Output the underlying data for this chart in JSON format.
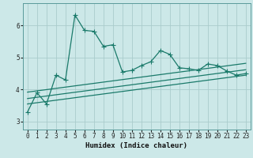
{
  "title": "",
  "xlabel": "Humidex (Indice chaleur)",
  "ylabel": "",
  "bg_color": "#cce8e8",
  "grid_color": "#aacccc",
  "line_color": "#1a7a6a",
  "spine_color": "#5a9a9a",
  "xlim": [
    -0.5,
    23.5
  ],
  "ylim": [
    2.75,
    6.7
  ],
  "xticks": [
    0,
    1,
    2,
    3,
    4,
    5,
    6,
    7,
    8,
    9,
    10,
    11,
    12,
    13,
    14,
    15,
    16,
    17,
    18,
    19,
    20,
    21,
    22,
    23
  ],
  "yticks": [
    3,
    4,
    5,
    6
  ],
  "main_series_x": [
    0,
    1,
    2,
    3,
    4,
    5,
    6,
    7,
    8,
    9,
    10,
    11,
    12,
    13,
    14,
    15,
    16,
    17,
    18,
    19,
    20,
    21,
    22,
    23
  ],
  "main_series_y": [
    3.3,
    3.9,
    3.55,
    4.45,
    4.3,
    6.33,
    5.85,
    5.82,
    5.35,
    5.4,
    4.55,
    4.6,
    4.75,
    4.87,
    5.22,
    5.1,
    4.68,
    4.65,
    4.6,
    4.8,
    4.75,
    4.58,
    4.45,
    4.5
  ],
  "line1_x": [
    0,
    23
  ],
  "line1_y": [
    3.92,
    4.82
  ],
  "line2_x": [
    0,
    23
  ],
  "line2_y": [
    3.72,
    4.62
  ],
  "line3_x": [
    0,
    23
  ],
  "line3_y": [
    3.55,
    4.45
  ],
  "marker": "+",
  "marker_size": 4,
  "line_width": 0.9,
  "tick_label_size": 5.5,
  "xlabel_size": 6.5
}
